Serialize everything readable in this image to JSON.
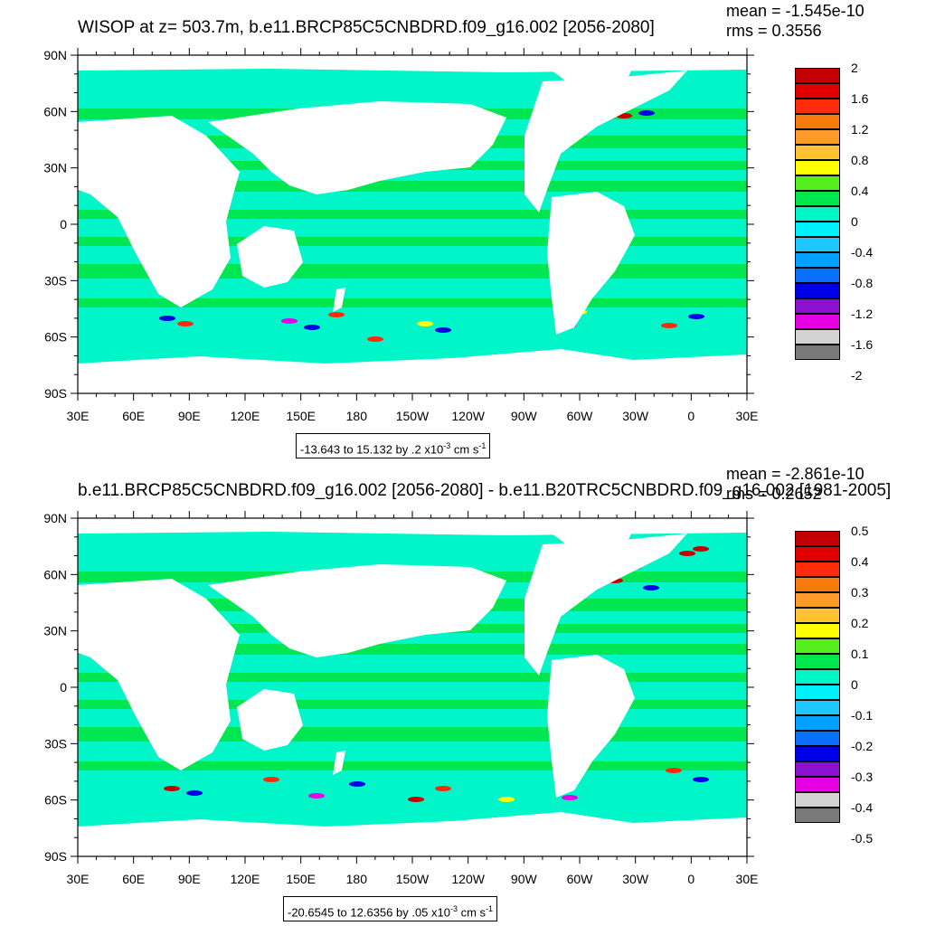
{
  "panels": [
    {
      "title": "WISOP at z= 503.7m, b.e11.BRCP85C5CNBDRD.f09_g16.002 [2056-2080]",
      "mean": "mean = -1.545e-10",
      "rms": "rms = 0.3556",
      "range_main": "-13.643 to 15.132 by .2 x10",
      "range_exp": "-3",
      "range_unit": " cm s",
      "range_unit_exp": "-1",
      "colorbar_labels": [
        "2",
        "1.6",
        "1.2",
        "0.8",
        "0.4",
        "0",
        "-0.4",
        "-0.8",
        "-1.2",
        "-1.6",
        "-2"
      ]
    },
    {
      "title": "b.e11.BRCP85C5CNBDRD.f09_g16.002 [2056-2080] - b.e11.B20TRC5CNBDRD.f09_g16.002 [1981-2005]",
      "mean": "mean = -2.861e-10",
      "rms": "rms = 0.2652",
      "range_main": "-20.6545 to 12.6356 by .05 x10",
      "range_exp": "-3",
      "range_unit": " cm s",
      "range_unit_exp": "-1",
      "colorbar_labels": [
        "0.5",
        "0.4",
        "0.3",
        "0.2",
        "0.1",
        "0",
        "-0.1",
        "-0.2",
        "-0.3",
        "-0.4",
        "-0.5"
      ]
    }
  ],
  "lat_labels": [
    "90N",
    "60N",
    "30N",
    "0",
    "30S",
    "60S",
    "90S"
  ],
  "lon_labels": [
    "30E",
    "60E",
    "90E",
    "120E",
    "150E",
    "180",
    "150W",
    "120W",
    "90W",
    "60W",
    "30W",
    "0",
    "30E"
  ],
  "colorbar_colors": [
    "#c40000",
    "#e00000",
    "#ff2a0a",
    "#f57c0a",
    "#ff9a2a",
    "#ffc32e",
    "#ffff00",
    "#55ef1e",
    "#00e650",
    "#00f5c8",
    "#00f0ff",
    "#1ec8ff",
    "#00a0ff",
    "#0a6eff",
    "#0000e6",
    "#8c10d2",
    "#e600e6",
    "#d2d2d2",
    "#7a7a7a"
  ],
  "map_colors": {
    "ocean": "#00f5c8",
    "band": "#00e650",
    "land": "#ffffff",
    "neg_strong": "#0000e6",
    "pos_strong": "#c40000",
    "warm": "#ff2a0a",
    "yellow": "#ffff00",
    "magenta": "#e600e6"
  }
}
